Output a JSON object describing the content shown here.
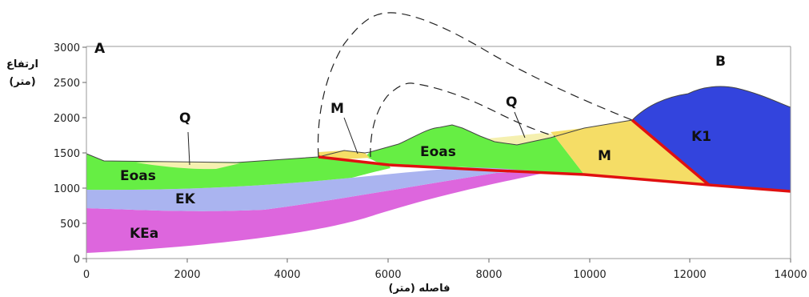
{
  "colors": {
    "eoas": "#66ee44",
    "ek": "#aab4f0",
    "kea": "#dd66dd",
    "m": "#f5dd66",
    "q": "#f5f0b0",
    "k1": "#3344dd",
    "fault": "#e01010"
  },
  "labels": {
    "corner_a": "A",
    "corner_b": "B",
    "q_left": "Q",
    "q_right": "Q",
    "m_fault": "M",
    "m_unit": "M",
    "eoas_left": "Eoas",
    "eoas_center": "Eoas",
    "ek": "EK",
    "kea": "KEa",
    "k1": "K1"
  },
  "axes": {
    "y_title": "ارتفاع",
    "y_unit": "(متر)",
    "x_title": "فاصله (متر)",
    "x_ticks": [
      "0",
      "2000",
      "4000",
      "6000",
      "8000",
      "10000",
      "12000",
      "14000"
    ],
    "y_ticks": [
      "0",
      "500",
      "1000",
      "1500",
      "2000",
      "2500",
      "3000"
    ]
  }
}
